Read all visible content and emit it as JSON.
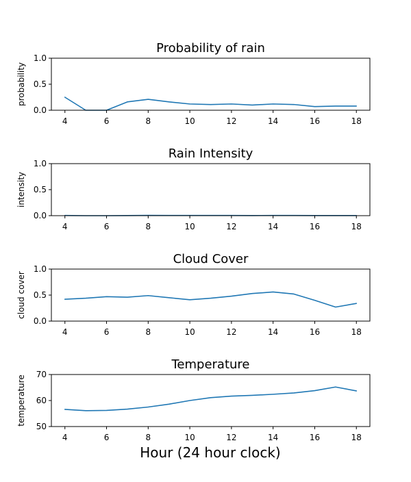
{
  "figure": {
    "xlabel": "Hour (24 hour clock)"
  },
  "chart_data": [
    {
      "type": "line",
      "title": "Probability of rain",
      "xlabel": "",
      "ylabel": "probability",
      "x": [
        4,
        5,
        6,
        7,
        8,
        9,
        10,
        11,
        12,
        13,
        14,
        15,
        16,
        17,
        18
      ],
      "xticks": [
        4,
        6,
        8,
        10,
        12,
        14,
        16,
        18
      ],
      "xlim": [
        3.35,
        18.65
      ],
      "yticks": [
        "0.0",
        "0.5",
        "1.0"
      ],
      "ylim": [
        0,
        1
      ],
      "grid": false,
      "series": [
        {
          "color": "#1f77b4",
          "values": [
            0.25,
            0.0,
            0.0,
            0.16,
            0.21,
            0.16,
            0.12,
            0.11,
            0.12,
            0.1,
            0.12,
            0.11,
            0.07,
            0.08,
            0.08
          ]
        }
      ]
    },
    {
      "type": "line",
      "title": "Rain Intensity",
      "xlabel": "",
      "ylabel": "intensity",
      "x": [
        4,
        5,
        6,
        7,
        8,
        9,
        10,
        11,
        12,
        13,
        14,
        15,
        16,
        17,
        18
      ],
      "xticks": [
        4,
        6,
        8,
        10,
        12,
        14,
        16,
        18
      ],
      "xlim": [
        3.35,
        18.65
      ],
      "yticks": [
        "0.0",
        "0.5",
        "1.0"
      ],
      "ylim": [
        0,
        1
      ],
      "grid": false,
      "series": [
        {
          "color": "#1f77b4",
          "values": [
            0.004,
            0.0,
            0.0,
            0.003,
            0.006,
            0.005,
            0.004,
            0.004,
            0.004,
            0.003,
            0.004,
            0.004,
            0.002,
            0.003,
            0.003
          ]
        }
      ]
    },
    {
      "type": "line",
      "title": "Cloud Cover",
      "xlabel": "",
      "ylabel": "cloud cover",
      "x": [
        4,
        5,
        6,
        7,
        8,
        9,
        10,
        11,
        12,
        13,
        14,
        15,
        16,
        17,
        18
      ],
      "xticks": [
        4,
        6,
        8,
        10,
        12,
        14,
        16,
        18
      ],
      "xlim": [
        3.35,
        18.65
      ],
      "yticks": [
        "0.0",
        "0.5",
        "1.0"
      ],
      "ylim": [
        0,
        1
      ],
      "grid": false,
      "series": [
        {
          "color": "#1f77b4",
          "values": [
            0.42,
            0.44,
            0.47,
            0.46,
            0.49,
            0.45,
            0.41,
            0.44,
            0.48,
            0.53,
            0.56,
            0.52,
            0.4,
            0.27,
            0.34
          ]
        }
      ]
    },
    {
      "type": "line",
      "title": "Temperature",
      "xlabel": "",
      "ylabel": "temperature",
      "x": [
        4,
        5,
        6,
        7,
        8,
        9,
        10,
        11,
        12,
        13,
        14,
        15,
        16,
        17,
        18
      ],
      "xticks": [
        4,
        6,
        8,
        10,
        12,
        14,
        16,
        18
      ],
      "xlim": [
        3.35,
        18.65
      ],
      "yticks": [
        "50",
        "60",
        "70"
      ],
      "ylim": [
        50,
        70
      ],
      "grid": false,
      "series": [
        {
          "color": "#1f77b4",
          "values": [
            56.6,
            56.1,
            56.2,
            56.7,
            57.5,
            58.6,
            60.0,
            61.1,
            61.7,
            62.0,
            62.4,
            62.9,
            63.8,
            65.2,
            63.7
          ]
        }
      ]
    }
  ]
}
